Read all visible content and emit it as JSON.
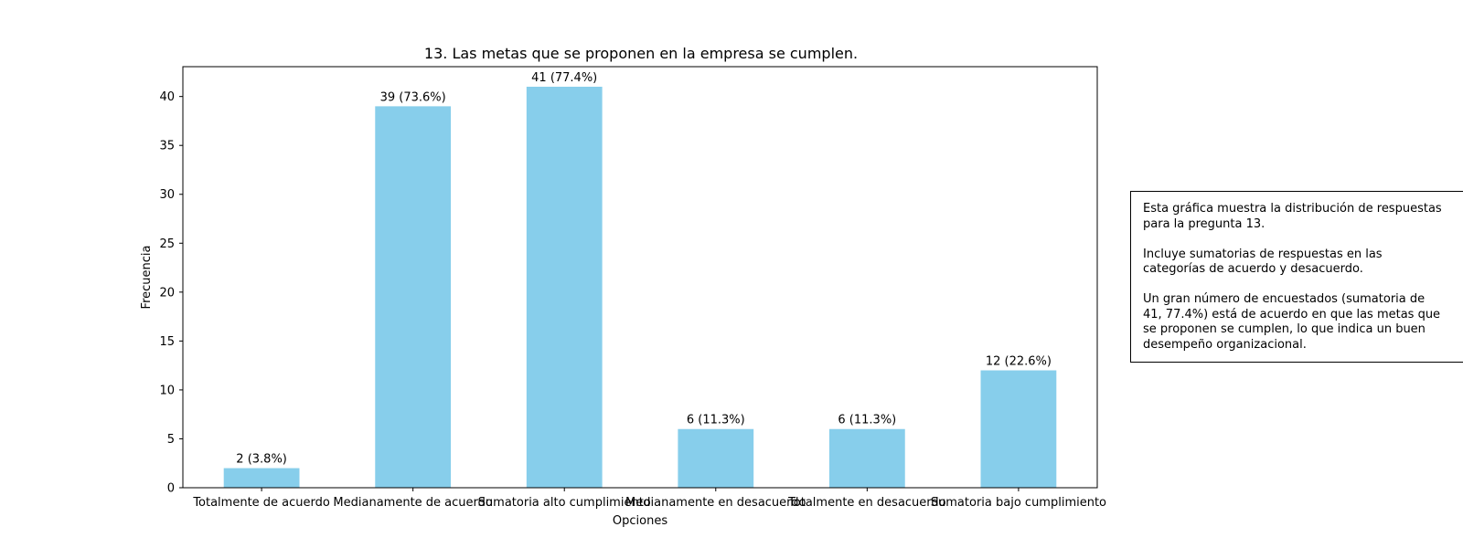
{
  "chart_data": {
    "type": "bar",
    "title": "13. Las metas que se proponen en la empresa se cumplen.",
    "xlabel": "Opciones",
    "ylabel": "Frecuencia",
    "categories": [
      "Totalmente de acuerdo",
      "Medianamente de acuerdo",
      "Sumatoria alto cumplimiento",
      "Medianamente en desacuerdo",
      "Totalmente en desacuerdo",
      "Sumatoria bajo cumplimiento"
    ],
    "values": [
      2,
      39,
      41,
      6,
      6,
      12
    ],
    "data_labels": [
      "2 (3.8%)",
      "39 (73.6%)",
      "41 (77.4%)",
      "6 (11.3%)",
      "6 (11.3%)",
      "12 (22.6%)"
    ],
    "ylim": [
      0,
      43.05
    ],
    "yticks": [
      0,
      5,
      10,
      15,
      20,
      25,
      30,
      35,
      40
    ],
    "bar_color": "#87ceeb",
    "grid": false,
    "legend": "none"
  },
  "note": {
    "paragraphs": [
      [
        "Esta gráfica muestra la distribución de respuestas",
        "para la pregunta 13."
      ],
      [
        "Incluye sumatorias de respuestas en las",
        "categorías de acuerdo y desacuerdo."
      ],
      [
        "Un gran número de encuestados (sumatoria de",
        "41, 77.4%) está de acuerdo en que las metas que",
        "se proponen se cumplen, lo que indica un buen",
        "desempeño organizacional."
      ]
    ]
  }
}
